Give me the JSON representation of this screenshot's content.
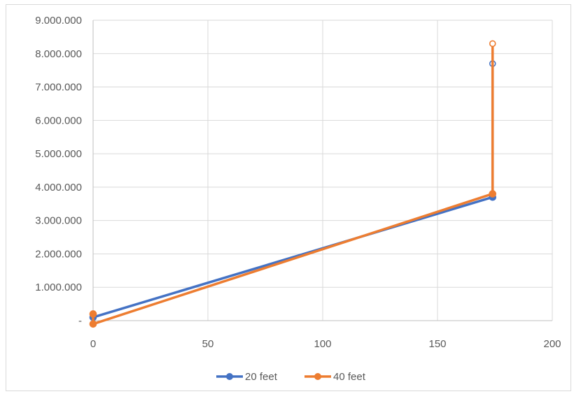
{
  "chart_data": {
    "type": "line",
    "title": "",
    "xlabel": "",
    "ylabel": "",
    "xlim": [
      0,
      200
    ],
    "ylim": [
      0,
      9000000
    ],
    "x_ticks": [
      0,
      50,
      100,
      150,
      200
    ],
    "x_tick_labels": [
      "0",
      "50",
      "100",
      "150",
      "200"
    ],
    "y_ticks": [
      0,
      1000000,
      2000000,
      3000000,
      4000000,
      5000000,
      6000000,
      7000000,
      8000000,
      9000000
    ],
    "y_tick_labels": [
      "-",
      "1.000.000",
      "2.000.000",
      "3.000.000",
      "4.000.000",
      "5.000.000",
      "6.000.000",
      "7.000.000",
      "8.000.000",
      "9.000.000"
    ],
    "grid": true,
    "legend_position": "bottom",
    "series": [
      {
        "name": "20 feet",
        "color": "#4472c4",
        "points": [
          [
            0,
            100000
          ],
          [
            174,
            3700000
          ],
          [
            174,
            7700000
          ]
        ]
      },
      {
        "name": "40 feet",
        "color": "#ed7d31",
        "points": [
          [
            0,
            200000
          ],
          [
            0,
            -100000
          ],
          [
            174,
            3800000
          ],
          [
            174,
            8300000
          ]
        ]
      }
    ]
  }
}
